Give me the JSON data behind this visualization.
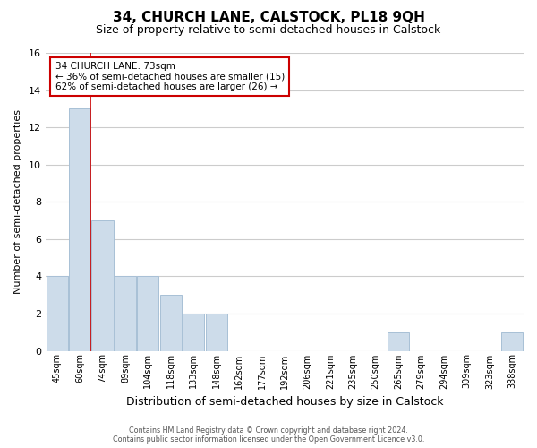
{
  "title": "34, CHURCH LANE, CALSTOCK, PL18 9QH",
  "subtitle": "Size of property relative to semi-detached houses in Calstock",
  "xlabel": "Distribution of semi-detached houses by size in Calstock",
  "ylabel": "Number of semi-detached properties",
  "categories": [
    "45sqm",
    "60sqm",
    "74sqm",
    "89sqm",
    "104sqm",
    "118sqm",
    "133sqm",
    "148sqm",
    "162sqm",
    "177sqm",
    "192sqm",
    "206sqm",
    "221sqm",
    "235sqm",
    "250sqm",
    "265sqm",
    "279sqm",
    "294sqm",
    "309sqm",
    "323sqm",
    "338sqm"
  ],
  "counts": [
    4,
    13,
    7,
    4,
    4,
    3,
    2,
    2,
    0,
    0,
    0,
    0,
    0,
    0,
    0,
    1,
    0,
    0,
    0,
    0,
    1
  ],
  "bar_color": "#cddcea",
  "bar_edge_color": "#a8c0d6",
  "highlight_bar_index": 1,
  "highlight_line_color": "#cc0000",
  "annotation_text": "34 CHURCH LANE: 73sqm\n← 36% of semi-detached houses are smaller (15)\n62% of semi-detached houses are larger (26) →",
  "annotation_box_facecolor": "white",
  "annotation_box_edgecolor": "#cc0000",
  "ylim": [
    0,
    16
  ],
  "yticks": [
    0,
    2,
    4,
    6,
    8,
    10,
    12,
    14,
    16
  ],
  "footer_line1": "Contains HM Land Registry data © Crown copyright and database right 2024.",
  "footer_line2": "Contains public sector information licensed under the Open Government Licence v3.0.",
  "title_fontsize": 11,
  "subtitle_fontsize": 9,
  "xlabel_fontsize": 9,
  "ylabel_fontsize": 8,
  "tick_fontsize": 7,
  "ytick_fontsize": 8,
  "background_color": "#ffffff",
  "plot_background_color": "#ffffff",
  "grid_color": "#cccccc",
  "grid_linewidth": 0.8
}
